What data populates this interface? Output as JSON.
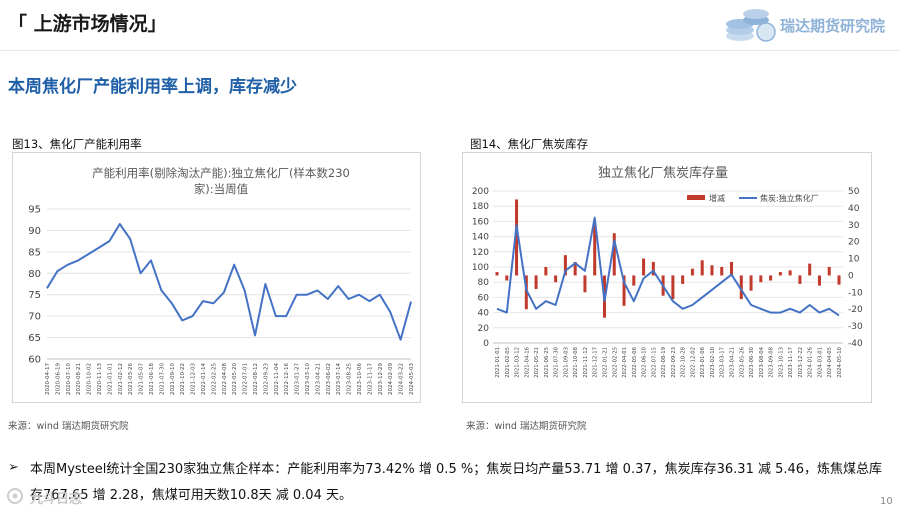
{
  "header": {
    "section_title": "「 上游市场情况」",
    "logo_text": "瑞达期货研究院",
    "headline": "本周焦化厂产能利用率上调，库存减少"
  },
  "figures": [
    {
      "caption": "图13、焦化厂产能利用率",
      "source": "来源：wind    瑞达期货研究院"
    },
    {
      "caption": "图14、焦化厂焦炭库存",
      "source": "来源：wind    瑞达期货研究院"
    }
  ],
  "summary": {
    "bullet": "➢",
    "text": "本周Mysteel统计全国230家独立焦企样本：产能利用率为73.42% 增 0.5 %；焦炭日均产量53.71 增 0.37，焦炭库存36.31 减 5.46，炼焦煤总库存767.65 增 2.28，焦煤可用天数10.8天 减 0.04 天。"
  },
  "page_number": "10",
  "watermark_text": "九斗日志",
  "colors": {
    "accent": "#1f5fa8",
    "line": "#4472c4",
    "bar": "#c0392b"
  },
  "chart_data": [
    {
      "type": "line",
      "title": "产能利用率(剔除淘汰产能):独立焦化厂(样本数230家):当周值",
      "title_lines": [
        "产能利用率(剔除淘汰产能):独立焦化厂(样本数230",
        "家):当周值"
      ],
      "ylim": [
        60,
        95
      ],
      "yticks": [
        "60",
        "65",
        "70",
        "75",
        "80",
        "85",
        "90",
        "95"
      ],
      "grid": true,
      "xtick_labels": [
        "2020-04-17",
        "2020-06-19",
        "2020-07-10",
        "2020-08-21",
        "2020-10-02",
        "2020-11-13",
        "2021-01-01",
        "2021-02-12",
        "2021-03-26",
        "2021-05-07",
        "2021-06-18",
        "2021-07-30",
        "2021-09-10",
        "2021-10-22",
        "2021-12-03",
        "2022-01-14",
        "2022-02-25",
        "2022-04-08",
        "2022-05-20",
        "2022-07-01",
        "2022-08-12",
        "2022-09-23",
        "2022-11-04",
        "2022-12-16",
        "2023-01-27",
        "2023-03-10",
        "2023-04-21",
        "2023-06-02",
        "2023-07-14",
        "2023-08-25",
        "2023-10-06",
        "2023-11-17",
        "2023-12-29",
        "2024-02-09",
        "2024-03-22",
        "2024-05-03"
      ],
      "series": [
        {
          "name": "",
          "x": [
            0,
            1,
            2,
            3,
            4,
            5,
            6,
            7,
            8,
            9,
            10,
            11,
            12,
            13,
            14,
            15,
            16,
            17,
            18,
            19,
            20,
            21,
            22,
            23,
            24,
            25,
            26,
            27,
            28,
            29,
            30,
            31,
            32,
            33,
            34,
            35
          ],
          "values": [
            76.5,
            80.5,
            82,
            83,
            84.5,
            86,
            87.5,
            91.5,
            88,
            80,
            83,
            76,
            73,
            69,
            70,
            73.5,
            73,
            75.5,
            82,
            76,
            65.5,
            77.5,
            70,
            70,
            75,
            75,
            76,
            74,
            77,
            74,
            75,
            73.5,
            75,
            71,
            64.5,
            73.4
          ]
        }
      ]
    },
    {
      "type": "bar+line",
      "title": "独立焦化厂焦炭库存量",
      "legend": [
        "增减",
        "焦炭:独立焦化厂"
      ],
      "legend_position": "top",
      "ylim_left": [
        0,
        200
      ],
      "yticks_left": [
        "0",
        "20",
        "40",
        "60",
        "80",
        "100",
        "120",
        "140",
        "160",
        "180",
        "200"
      ],
      "ylim_right": [
        -40,
        50
      ],
      "yticks_right": [
        "-40",
        "-30",
        "-20",
        "-10",
        "0",
        "10",
        "20",
        "30",
        "40",
        "50"
      ],
      "grid": true,
      "xtick_labels": [
        "2021-01-01",
        "2021-02-05",
        "2021-03-12",
        "2021-04-16",
        "2021-05-21",
        "2021-06-25",
        "2021-07-30",
        "2021-09-03",
        "2021-10-08",
        "2021-11-12",
        "2021-12-17",
        "2022-01-21",
        "2022-02-25",
        "2022-04-01",
        "2022-05-06",
        "2022-06-10",
        "2022-07-15",
        "2022-08-19",
        "2022-09-23",
        "2022-10-28",
        "2022-12-02",
        "2023-01-06",
        "2023-02-10",
        "2023-03-17",
        "2023-04-21",
        "2023-05-26",
        "2023-06-30",
        "2023-08-04",
        "2023-09-08",
        "2023-10-13",
        "2023-11-17",
        "2023-12-22",
        "2024-01-26",
        "2024-03-01",
        "2024-04-05",
        "2024-05-10"
      ],
      "series": [
        {
          "name": "焦炭:独立焦化厂",
          "axis": "left",
          "x": [
            0,
            1,
            2,
            3,
            4,
            5,
            6,
            7,
            8,
            9,
            10,
            11,
            12,
            13,
            14,
            15,
            16,
            17,
            18,
            19,
            20,
            21,
            22,
            23,
            24,
            25,
            26,
            27,
            28,
            29,
            30,
            31,
            32,
            33,
            34,
            35
          ],
          "values": [
            45,
            40,
            155,
            70,
            45,
            55,
            50,
            95,
            105,
            95,
            165,
            55,
            135,
            80,
            55,
            85,
            95,
            75,
            55,
            45,
            50,
            60,
            70,
            80,
            90,
            70,
            50,
            45,
            40,
            40,
            45,
            40,
            50,
            40,
            45,
            36.31
          ]
        },
        {
          "name": "增减",
          "axis": "right",
          "x": [
            0,
            1,
            2,
            3,
            4,
            5,
            6,
            7,
            8,
            9,
            10,
            11,
            12,
            13,
            14,
            15,
            16,
            17,
            18,
            19,
            20,
            21,
            22,
            23,
            24,
            25,
            26,
            27,
            28,
            29,
            30,
            31,
            32,
            33,
            34,
            35
          ],
          "values": [
            2,
            -3,
            45,
            -20,
            -8,
            5,
            -4,
            12,
            8,
            -10,
            30,
            -25,
            25,
            -18,
            -6,
            10,
            8,
            -12,
            -14,
            -5,
            4,
            9,
            6,
            5,
            8,
            -14,
            -9,
            -4,
            -3,
            2,
            3,
            -5,
            7,
            -6,
            5,
            -5.46
          ]
        }
      ]
    }
  ]
}
